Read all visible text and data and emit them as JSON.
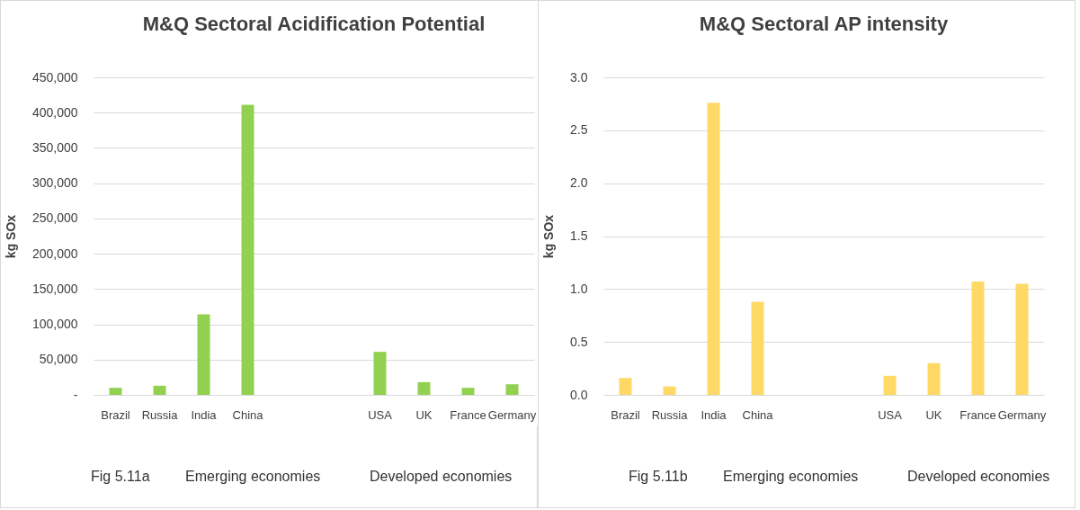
{
  "chart_data": [
    {
      "type": "bar",
      "title": "M&Q Sectoral Acidification Potential",
      "ylabel": "kg SOx",
      "categories": [
        "Brazil",
        "Russia",
        "India",
        "China",
        null,
        null,
        "USA",
        "UK",
        "France",
        "Germany"
      ],
      "values": [
        10000,
        13000,
        114000,
        411000,
        null,
        null,
        61000,
        18000,
        10000,
        15000
      ],
      "color": "#92d050",
      "ylim": [
        0,
        450000
      ],
      "yticks": [
        {
          "value": 0,
          "label": "-"
        },
        {
          "value": 50000,
          "label": "50,000"
        },
        {
          "value": 100000,
          "label": "100,000"
        },
        {
          "value": 150000,
          "label": "150,000"
        },
        {
          "value": 200000,
          "label": "200,000"
        },
        {
          "value": 250000,
          "label": "250,000"
        },
        {
          "value": 300000,
          "label": "300,000"
        },
        {
          "value": 350000,
          "label": "350,000"
        },
        {
          "value": 400000,
          "label": "400,000"
        },
        {
          "value": 450000,
          "label": "450,000"
        }
      ],
      "grid": "y",
      "annotations": [
        "Fig 5.11a",
        "Emerging economies",
        "Developed economies"
      ]
    },
    {
      "type": "bar",
      "title": "M&Q Sectoral AP intensity",
      "ylabel": "kg SOx",
      "categories": [
        "Brazil",
        "Russia",
        "India",
        "China",
        null,
        null,
        "USA",
        "UK",
        "France",
        "Germany"
      ],
      "values": [
        0.16,
        0.08,
        2.76,
        0.88,
        null,
        null,
        0.18,
        0.3,
        1.07,
        1.05
      ],
      "color": "#ffd966",
      "ylim": [
        0,
        3
      ],
      "yticks": [
        {
          "value": 0,
          "label": "0.0"
        },
        {
          "value": 0.5,
          "label": "0.5"
        },
        {
          "value": 1,
          "label": "1.0"
        },
        {
          "value": 1.5,
          "label": "1.5"
        },
        {
          "value": 2,
          "label": "2.0"
        },
        {
          "value": 2.5,
          "label": "2.5"
        },
        {
          "value": 3,
          "label": "3.0"
        }
      ],
      "grid": "y",
      "annotations": [
        "Fig 5.11b",
        "Emerging economies",
        "Developed economies"
      ]
    }
  ]
}
